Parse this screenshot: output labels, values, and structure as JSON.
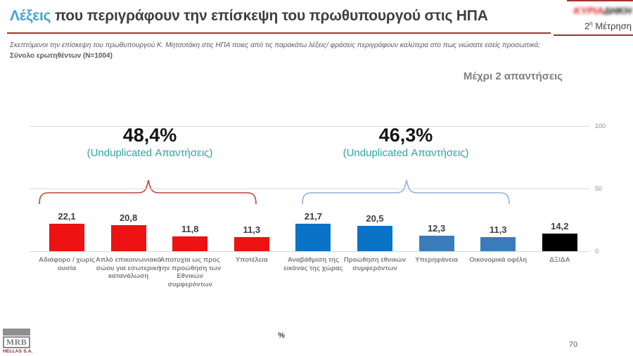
{
  "header": {
    "title_highlight": "Λέξεις",
    "title_rest": " που περιγράφουν την επίσκεψη του πρωθυπουργού στις ΗΠΑ",
    "brand_masked_left": "ΚΥΡΙΑ",
    "brand_masked_right": "ΔΗΚΗ",
    "measurement_num": "2",
    "measurement_sup": "η",
    "measurement_rest": " Μέτρηση"
  },
  "question": {
    "line1": "Σκεπτόμενοι την επίσκεψη του πρωθυπουργού Κ. Μητσοτάκη στις ΗΠΑ ποιες από τις παρακάτω λέξεις/ φράσεις περιγράφουν καλύτερα στο πως νιώσατε εσείς προσωπικά;",
    "line2": "Σύνολο ερωτηθέντων (N=1004)"
  },
  "note": "Μέχρι 2 απαντήσεις",
  "chart_data": {
    "type": "bar",
    "title": "Λέξεις που περιγράφουν την επίσκεψη του πρωθυπουργού στις ΗΠΑ",
    "categories": [
      "Αδιάφορο / χωρίς ουσία",
      "Απλό επικοινωνιακό σώου για εσωτερική κατανάλωση",
      "Αποτυχία ως προς την προώθηση των Εθνικών συμφερόντων",
      "Υποτέλεια",
      "Αναβάθμιση της εικόνας της χώρας",
      "Προώθηση εθνικών συμφερόντων",
      "Υπερηφάνεια",
      "Οικονομικά οφέλη",
      "ΔΞ/ΔΑ"
    ],
    "values": [
      22.1,
      20.8,
      11.8,
      11.3,
      21.7,
      20.5,
      12.3,
      11.3,
      14.2
    ],
    "value_labels": [
      "22,1",
      "20,8",
      "11,8",
      "11,3",
      "21,7",
      "20,5",
      "12,3",
      "11,3",
      "14,2"
    ],
    "bar_colors": [
      "#ee1212",
      "#ee1212",
      "#ee1212",
      "#ee1212",
      "#0b73c6",
      "#0b73c6",
      "#3a7cba",
      "#3a7cba",
      "#000000"
    ],
    "ylim": [
      0,
      100
    ],
    "yticks": [
      {
        "label": "0",
        "value": 0
      },
      {
        "label": "50",
        "value": 50
      },
      {
        "label": "100",
        "value": 100
      }
    ],
    "xlabel": "%",
    "grid": true,
    "legend": "none",
    "groups": [
      {
        "value": "48,4%",
        "caption": "(Unduplicated Απαντήσεις)",
        "span_categories": [
          0,
          3
        ],
        "brace_color": "#b9453c"
      },
      {
        "value": "46,3%",
        "caption": "(Unduplicated Απαντήσεις)",
        "span_categories": [
          4,
          7
        ],
        "brace_color": "#8fb2d5"
      }
    ]
  },
  "footer": {
    "logo_text": "MRB",
    "logo_subtext": "HELLAS S.A.",
    "page_number": "70"
  }
}
